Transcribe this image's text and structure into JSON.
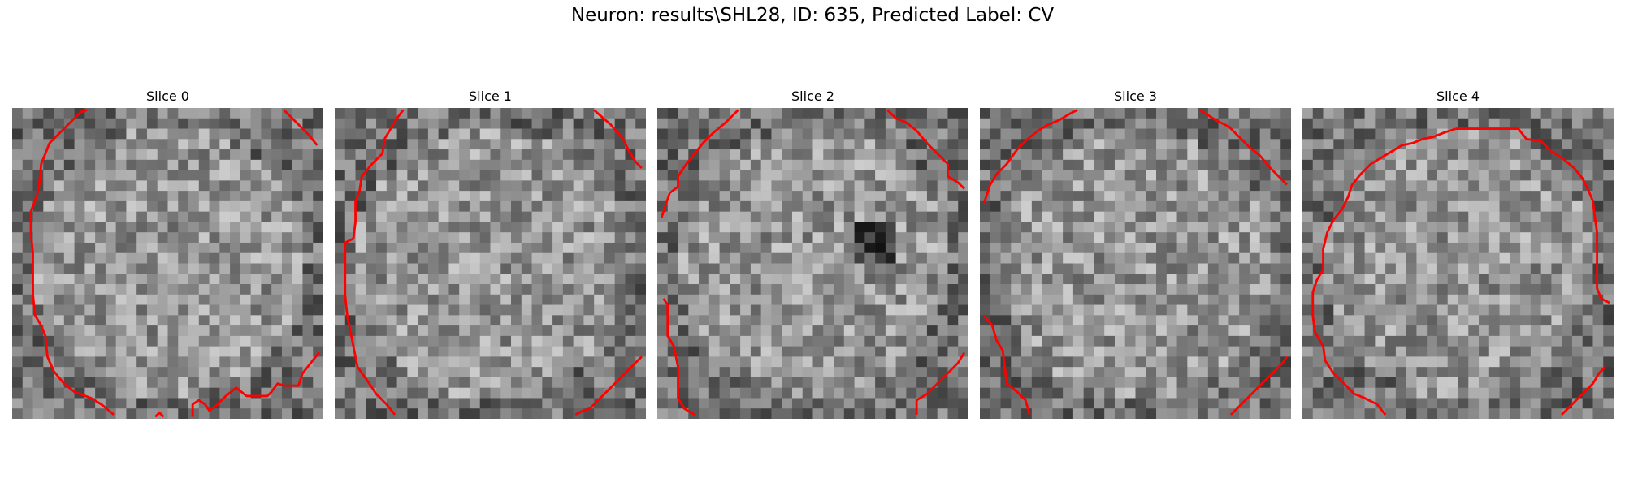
{
  "figure": {
    "title": "Neuron: results\\SHL28, ID: 635, Predicted Label: CV"
  },
  "slices": [
    {
      "title": "Slice 0"
    },
    {
      "title": "Slice 1"
    },
    {
      "title": "Slice 2"
    },
    {
      "title": "Slice 3"
    },
    {
      "title": "Slice 4"
    }
  ],
  "style": {
    "contour_color": "#ff0000",
    "colormap": "grayscale"
  }
}
